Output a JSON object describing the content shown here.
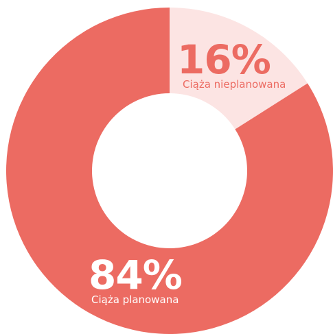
{
  "chart_data": {
    "type": "pie",
    "variant": "donut",
    "slices": [
      {
        "label": "Ciąża nieplanowana",
        "percent_label": "16%",
        "value": 16,
        "color": "#fce4e3",
        "text_color": "#ec6b62"
      },
      {
        "label": "Ciąża planowana",
        "percent_label": "84%",
        "value": 84,
        "color": "#ec6b62",
        "text_color": "#ffffff"
      }
    ],
    "start_angle": "top, clockwise"
  }
}
